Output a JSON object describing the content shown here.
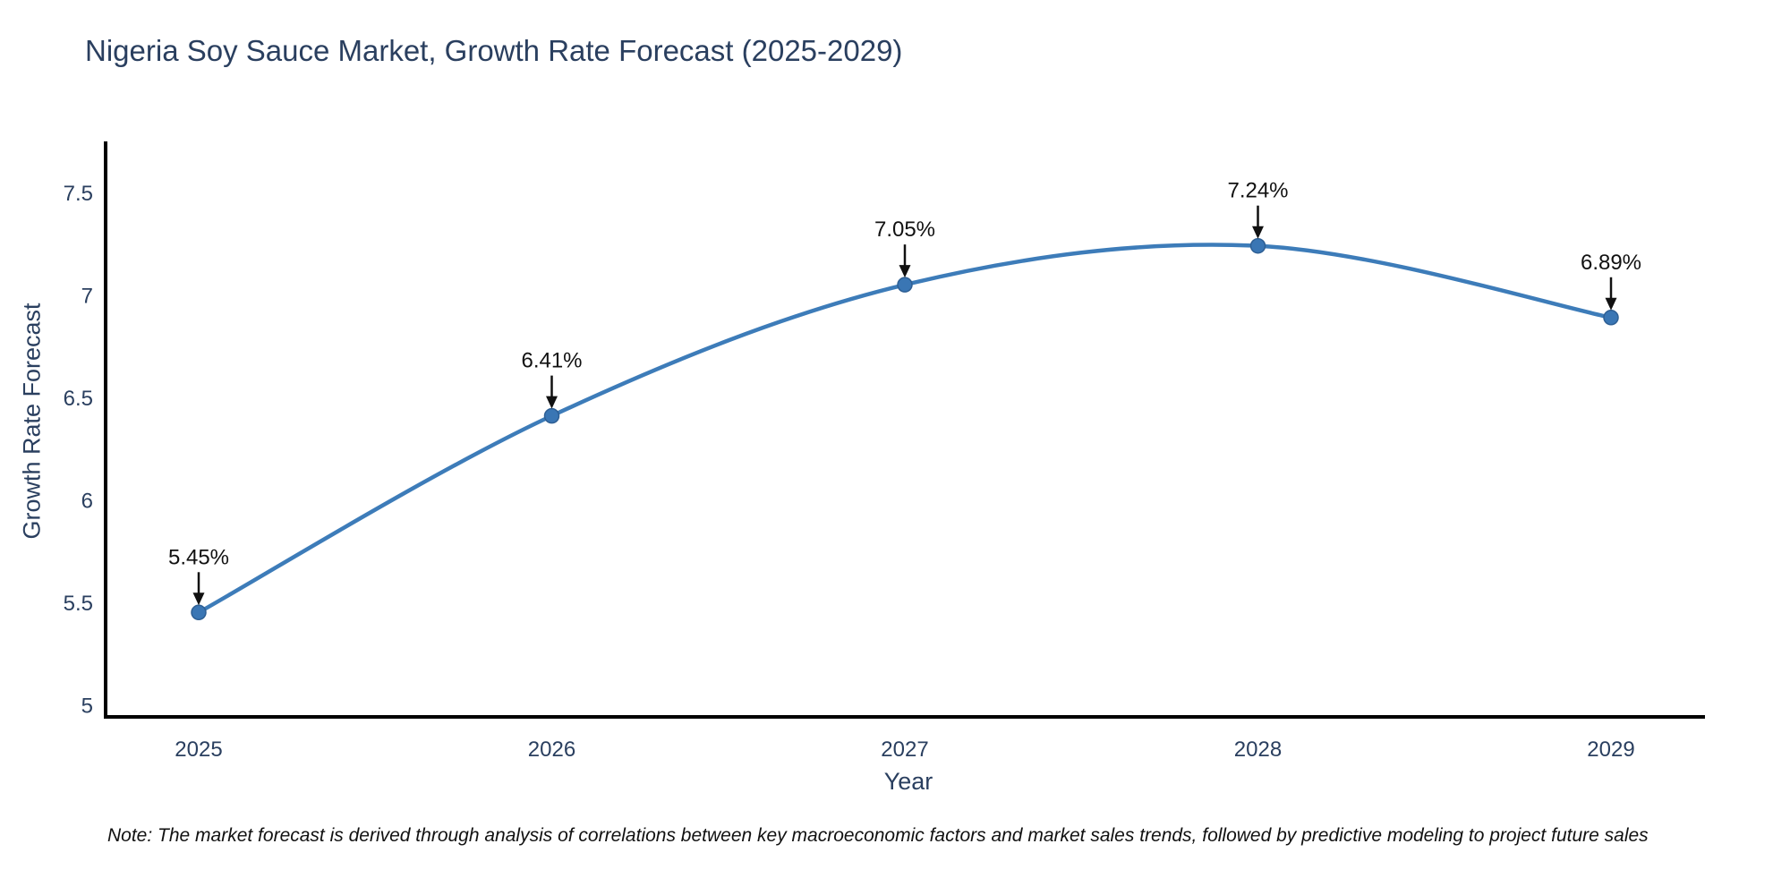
{
  "page": {
    "background": "#ffffff"
  },
  "chart_data": {
    "type": "line",
    "title": "Nigeria Soy Sauce Market, Growth Rate Forecast (2025-2029)",
    "xlabel": "Year",
    "ylabel": "Growth Rate Forecast",
    "x": [
      2025,
      2026,
      2027,
      2028,
      2029
    ],
    "x_tick_labels": [
      "2025",
      "2026",
      "2027",
      "2028",
      "2029"
    ],
    "series": [
      {
        "name": "Growth Rate Forecast",
        "values": [
          5.45,
          6.41,
          7.05,
          7.24,
          6.89
        ]
      }
    ],
    "point_labels": [
      "5.45%",
      "6.41%",
      "7.05%",
      "7.24%",
      "6.89%"
    ],
    "yticks": [
      5,
      5.5,
      6,
      6.5,
      7,
      7.5
    ],
    "ytick_labels": [
      "5",
      "5.5",
      "6",
      "6.5",
      "7",
      "7.5"
    ],
    "ylim": [
      4.94,
      7.75
    ],
    "grid": false,
    "legend": "none",
    "line_color": "#3d7cb9",
    "marker_color": "#3a76b4",
    "marker_edge_color": "#2e5f94",
    "annotation_color": "#111111",
    "axis_color": "#000000",
    "text_color": "#2a3f5f"
  },
  "footnote": "Note: The market forecast is derived through analysis of correlations between key macroeconomic factors and market sales trends, followed by predictive modeling to project future sales"
}
